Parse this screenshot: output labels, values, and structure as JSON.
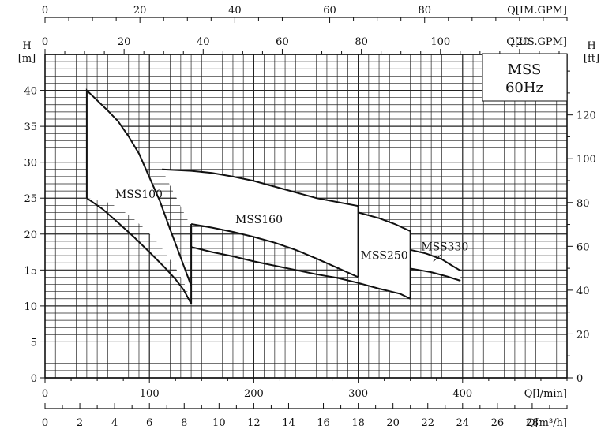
{
  "chart_data": {
    "type": "area",
    "title_box": [
      "MSS",
      "60Hz"
    ],
    "axes": {
      "q_lmin": {
        "label": "Q[l/min]",
        "range": [
          0,
          500
        ],
        "ticks": [
          0,
          100,
          200,
          300,
          400
        ]
      },
      "q_m3h": {
        "label": "Q[m³/h]",
        "range": [
          0,
          30
        ],
        "ticks": [
          0,
          2,
          4,
          6,
          8,
          10,
          12,
          14,
          16,
          18,
          20,
          22,
          24,
          26,
          28
        ]
      },
      "q_imgpm": {
        "label": "Q[IM.GPM]",
        "range": [
          0,
          110
        ],
        "ticks": [
          0,
          20,
          40,
          60,
          80
        ]
      },
      "q_usgpm": {
        "label": "Q[US.GPM]",
        "range": [
          0,
          132
        ],
        "ticks": [
          0,
          20,
          40,
          60,
          80,
          100,
          120
        ]
      },
      "h_m": {
        "label_top": "H",
        "label_unit": "[m]",
        "range": [
          0,
          45
        ],
        "ticks": [
          0,
          5,
          10,
          15,
          20,
          25,
          30,
          35,
          40
        ]
      },
      "h_ft": {
        "label_top": "H",
        "label_unit": "[ft]",
        "range": [
          0,
          147.6
        ],
        "ticks": [
          0,
          20,
          40,
          60,
          80,
          100,
          120
        ]
      }
    },
    "grid": true,
    "regions": [
      {
        "name": "MSS100",
        "polygon": [
          [
            40,
            40
          ],
          [
            50,
            38.6
          ],
          [
            60,
            37.2
          ],
          [
            70,
            35.7
          ],
          [
            80,
            33.6
          ],
          [
            90,
            31.2
          ],
          [
            100,
            27.9
          ],
          [
            110,
            24.6
          ],
          [
            120,
            20.6
          ],
          [
            130,
            16.7
          ],
          [
            140,
            12.8
          ],
          [
            140,
            10.3
          ],
          [
            135,
            12.7
          ],
          [
            125,
            15.3
          ],
          [
            115,
            17.5
          ],
          [
            105,
            19.3
          ],
          [
            95,
            20.8
          ],
          [
            85,
            22.1
          ],
          [
            75,
            23.2
          ],
          [
            65,
            24.1
          ],
          [
            55,
            24.7
          ],
          [
            40,
            25
          ]
        ],
        "label_at": [
          90,
          25
        ]
      },
      {
        "name": "MSS160",
        "polygon": [
          [
            112,
            29
          ],
          [
            140,
            28.8
          ],
          [
            160,
            28.5
          ],
          [
            180,
            28
          ],
          [
            200,
            27.4
          ],
          [
            220,
            26.6
          ],
          [
            240,
            25.8
          ],
          [
            260,
            25
          ],
          [
            300,
            23.9
          ],
          [
            300,
            14
          ],
          [
            280,
            15.3
          ],
          [
            260,
            16.6
          ],
          [
            240,
            17.8
          ],
          [
            220,
            18.8
          ],
          [
            200,
            19.6
          ],
          [
            180,
            20.3
          ],
          [
            160,
            20.9
          ],
          [
            140,
            21.4
          ],
          [
            140,
            21
          ],
          [
            112,
            29
          ]
        ],
        "label_at": [
          205,
          21.5
        ]
      },
      {
        "name": "MSS250",
        "polygon": [
          [
            300,
            23
          ],
          [
            320,
            22.2
          ],
          [
            335,
            21.4
          ],
          [
            350,
            20.4
          ],
          [
            350,
            11
          ],
          [
            330,
            11.9
          ],
          [
            310,
            12.7
          ],
          [
            300,
            13.2
          ]
        ],
        "label_at": [
          325,
          16.5
        ]
      },
      {
        "name": "MSS330",
        "polygon": [
          [
            350,
            17.8
          ],
          [
            365,
            17.3
          ],
          [
            380,
            16.5
          ],
          [
            390,
            15.6
          ],
          [
            398,
            14.9
          ],
          [
            398,
            13.5
          ],
          [
            385,
            14.1
          ],
          [
            370,
            14.7
          ],
          [
            358,
            15
          ],
          [
            350,
            15.2
          ]
        ],
        "label_at": [
          383,
          17.7
        ]
      }
    ],
    "outline_paths": [
      [
        [
          40,
          25
        ],
        [
          40,
          40
        ],
        [
          50,
          38.6
        ],
        [
          60,
          37.2
        ],
        [
          70,
          35.7
        ],
        [
          80,
          33.6
        ],
        [
          90,
          31.2
        ],
        [
          100,
          27.9
        ],
        [
          110,
          24.6
        ],
        [
          120,
          20.6
        ],
        [
          130,
          16.7
        ],
        [
          140,
          12.8
        ],
        [
          140,
          21
        ]
      ],
      [
        [
          40,
          25
        ],
        [
          55,
          23.5
        ],
        [
          70,
          21.6
        ],
        [
          85,
          19.6
        ],
        [
          100,
          17.5
        ],
        [
          115,
          15.3
        ],
        [
          125,
          13.7
        ],
        [
          133,
          12.2
        ],
        [
          140,
          10.3
        ],
        [
          140,
          12.8
        ]
      ],
      [
        [
          112,
          29
        ],
        [
          140,
          28.8
        ],
        [
          160,
          28.5
        ],
        [
          180,
          28
        ],
        [
          200,
          27.4
        ],
        [
          220,
          26.6
        ],
        [
          240,
          25.8
        ],
        [
          260,
          25
        ],
        [
          300,
          23.9
        ],
        [
          300,
          14
        ]
      ],
      [
        [
          140,
          21.4
        ],
        [
          160,
          20.9
        ],
        [
          180,
          20.3
        ],
        [
          200,
          19.6
        ],
        [
          220,
          18.8
        ],
        [
          240,
          17.8
        ],
        [
          260,
          16.6
        ],
        [
          280,
          15.3
        ],
        [
          300,
          14
        ]
      ],
      [
        [
          140,
          18.2
        ],
        [
          160,
          17.5
        ],
        [
          180,
          16.9
        ],
        [
          200,
          16.2
        ],
        [
          220,
          15.6
        ],
        [
          240,
          15
        ],
        [
          260,
          14.4
        ],
        [
          280,
          13.9
        ],
        [
          300,
          13.2
        ],
        [
          320,
          12.4
        ],
        [
          340,
          11.7
        ],
        [
          350,
          11
        ]
      ],
      [
        [
          140,
          21.4
        ],
        [
          140,
          18.2
        ]
      ],
      [
        [
          300,
          23
        ],
        [
          320,
          22.2
        ],
        [
          335,
          21.4
        ],
        [
          350,
          20.4
        ],
        [
          350,
          11
        ]
      ],
      [
        [
          350,
          17.8
        ],
        [
          365,
          17.3
        ],
        [
          380,
          16.5
        ],
        [
          390,
          15.6
        ],
        [
          398,
          14.9
        ]
      ],
      [
        [
          350,
          15.2
        ],
        [
          358,
          15
        ],
        [
          370,
          14.7
        ],
        [
          385,
          14.1
        ],
        [
          398,
          13.5
        ]
      ]
    ],
    "leader_line": [
      [
        372,
        16.2
      ],
      [
        380,
        17.2
      ]
    ]
  }
}
